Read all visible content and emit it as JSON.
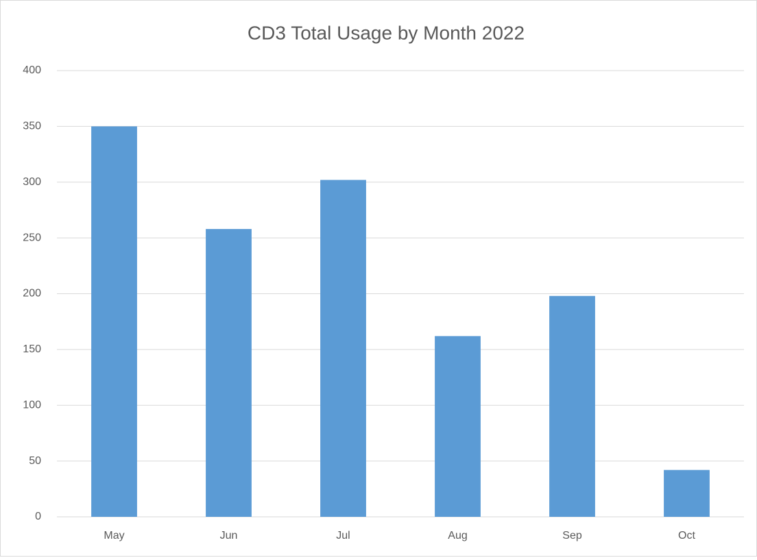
{
  "chart_data": {
    "type": "bar",
    "title": "CD3 Total Usage by Month 2022",
    "categories": [
      "May",
      "Jun",
      "Jul",
      "Aug",
      "Sep",
      "Oct"
    ],
    "values": [
      350,
      258,
      302,
      162,
      198,
      42
    ],
    "color": "#5b9bd5",
    "ylim": [
      0,
      400
    ],
    "yticks": [
      0,
      50,
      100,
      150,
      200,
      250,
      300,
      350,
      400
    ],
    "grid": true
  }
}
